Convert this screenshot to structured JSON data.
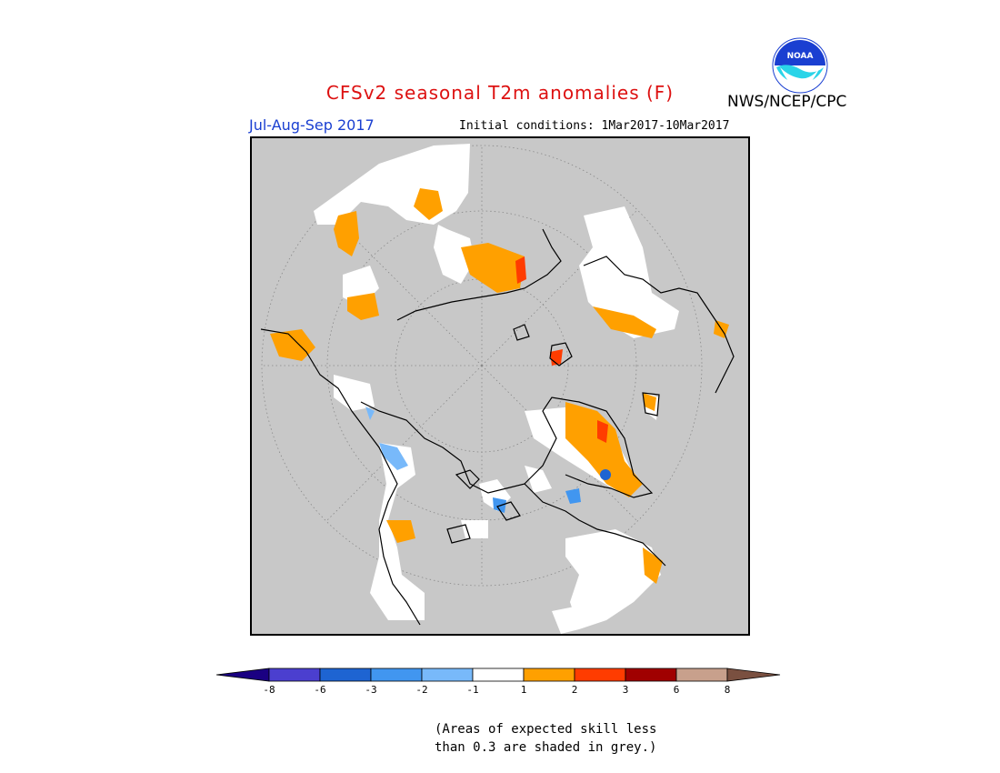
{
  "header": {
    "title": "CFSv2 seasonal T2m anomalies (F)",
    "organization": "NWS/NCEP/CPC",
    "season": "Jul-Aug-Sep 2017",
    "initial_conditions": "Initial conditions: 1Mar2017-10Mar2017",
    "logo_text": "NOAA"
  },
  "legend": {
    "bins": [
      {
        "color": "#1a0082"
      },
      {
        "color": "#4b3fcf"
      },
      {
        "color": "#1e64d2"
      },
      {
        "color": "#4196f0"
      },
      {
        "color": "#78b9fa"
      },
      {
        "color": "#ffffff"
      },
      {
        "color": "#ffa000"
      },
      {
        "color": "#ff3c00"
      },
      {
        "color": "#a00000"
      },
      {
        "color": "#c8a08c"
      },
      {
        "color": "#7a5040"
      }
    ],
    "labels": [
      "-8",
      "-6",
      "-3",
      "-2",
      "-1",
      "1",
      "2",
      "3",
      "6",
      "8"
    ]
  },
  "footnote": {
    "line1": "(Areas of expected skill less",
    "line2": "than 0.3 are shaded in grey.)"
  },
  "map": {
    "projection": "north-polar-stereographic",
    "mask_color": "#c8c8c8",
    "colors": {
      "positive_1_2": "#ffa000",
      "positive_2_3": "#ff3c00",
      "positive_3_6": "#a00000",
      "negative_1_2": "#78b9fa",
      "negative_2_3": "#4196f0",
      "negative_3_6": "#1e64d2",
      "neutral": "#ffffff"
    }
  }
}
